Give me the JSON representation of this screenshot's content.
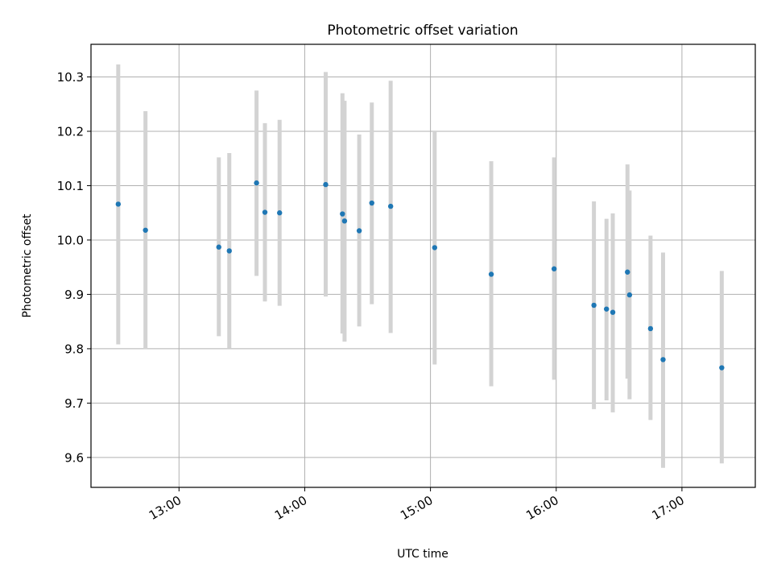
{
  "chart_data": {
    "type": "scatter",
    "title": "Photometric offset variation",
    "xlabel": "UTC time",
    "ylabel": "Photometric offset",
    "xlim": [
      "12:18",
      "17:35"
    ],
    "ylim": [
      9.545,
      10.36
    ],
    "x_ticks": [
      "13:00",
      "14:00",
      "15:00",
      "16:00",
      "17:00"
    ],
    "y_ticks": [
      "9.6",
      "9.7",
      "9.8",
      "9.9",
      "10.0",
      "10.1",
      "10.2",
      "10.3"
    ],
    "grid": true,
    "colors": {
      "marker": "#1f77b4",
      "errorbar": "#d3d3d3",
      "grid": "#b0b0b0"
    },
    "points": [
      {
        "x": "12:31",
        "y": 10.066,
        "ylo": 9.808,
        "yhi": 10.323
      },
      {
        "x": "12:44",
        "y": 10.018,
        "ylo": 9.799,
        "yhi": 10.237
      },
      {
        "x": "13:19",
        "y": 9.987,
        "ylo": 9.823,
        "yhi": 10.152
      },
      {
        "x": "13:24",
        "y": 9.98,
        "ylo": 9.8,
        "yhi": 10.16
      },
      {
        "x": "13:37",
        "y": 10.105,
        "ylo": 9.934,
        "yhi": 10.275
      },
      {
        "x": "13:41",
        "y": 10.051,
        "ylo": 9.887,
        "yhi": 10.215
      },
      {
        "x": "13:48",
        "y": 10.05,
        "ylo": 9.879,
        "yhi": 10.221
      },
      {
        "x": "14:10",
        "y": 10.102,
        "ylo": 9.896,
        "yhi": 10.309
      },
      {
        "x": "14:18",
        "y": 10.048,
        "ylo": 9.828,
        "yhi": 10.27
      },
      {
        "x": "14:19",
        "y": 10.035,
        "ylo": 9.813,
        "yhi": 10.256
      },
      {
        "x": "14:26",
        "y": 10.017,
        "ylo": 9.841,
        "yhi": 10.194
      },
      {
        "x": "14:32",
        "y": 10.068,
        "ylo": 9.882,
        "yhi": 10.253
      },
      {
        "x": "14:41",
        "y": 10.062,
        "ylo": 9.829,
        "yhi": 10.293
      },
      {
        "x": "15:02",
        "y": 9.986,
        "ylo": 9.771,
        "yhi": 10.2
      },
      {
        "x": "15:29",
        "y": 9.937,
        "ylo": 9.731,
        "yhi": 10.145
      },
      {
        "x": "15:59",
        "y": 9.947,
        "ylo": 9.743,
        "yhi": 10.152
      },
      {
        "x": "16:18",
        "y": 9.88,
        "ylo": 9.689,
        "yhi": 10.071
      },
      {
        "x": "16:24",
        "y": 9.873,
        "ylo": 9.705,
        "yhi": 10.039
      },
      {
        "x": "16:27",
        "y": 9.867,
        "ylo": 9.683,
        "yhi": 10.049
      },
      {
        "x": "16:34",
        "y": 9.941,
        "ylo": 9.745,
        "yhi": 10.139
      },
      {
        "x": "16:35",
        "y": 9.899,
        "ylo": 9.707,
        "yhi": 10.091
      },
      {
        "x": "16:45",
        "y": 9.837,
        "ylo": 9.669,
        "yhi": 10.008
      },
      {
        "x": "16:51",
        "y": 9.78,
        "ylo": 9.581,
        "yhi": 9.977
      },
      {
        "x": "17:19",
        "y": 9.765,
        "ylo": 9.589,
        "yhi": 9.943
      }
    ]
  }
}
